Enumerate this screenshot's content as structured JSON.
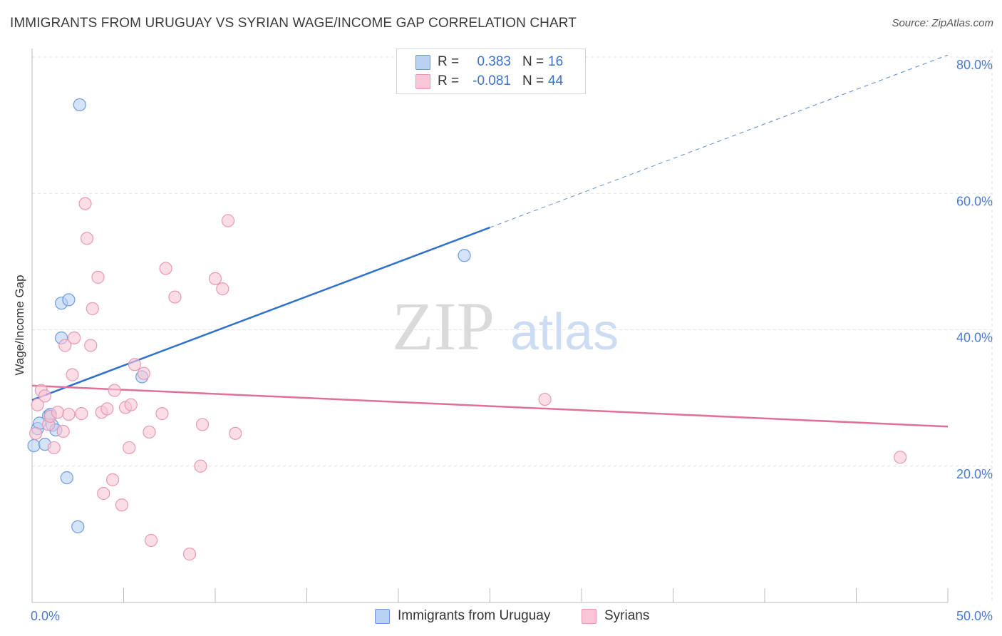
{
  "title": "IMMIGRANTS FROM URUGUAY VS SYRIAN WAGE/INCOME GAP CORRELATION CHART",
  "source": "Source: ZipAtlas.com",
  "watermark": {
    "zip": "ZIP",
    "atlas": "atlas"
  },
  "legend": {
    "rows": [
      {
        "r_label": "R =",
        "r_value": "0.383",
        "n_label": "N =",
        "n_value": "16"
      },
      {
        "r_label": "R =",
        "r_value": "-0.081",
        "n_label": "N =",
        "n_value": "44"
      }
    ]
  },
  "bottom_legend": {
    "series_a": "Immigrants from Uruguay",
    "series_b": "Syrians"
  },
  "colors": {
    "blue_fill": "#b9d1f3",
    "blue_stroke": "#6e9be0",
    "blue_line": "#2e6fcf",
    "pink_fill": "#f8c6d6",
    "pink_stroke": "#e898b4",
    "pink_line": "#e0709a",
    "grid": "#e2e2e2",
    "tick_text": "#4a7bd0"
  },
  "chart_data": {
    "type": "scatter",
    "title": "IMMIGRANTS FROM URUGUAY VS SYRIAN WAGE/INCOME GAP CORRELATION CHART",
    "xlabel": "",
    "ylabel": "Wage/Income Gap",
    "xlim": [
      0,
      50
    ],
    "ylim": [
      0,
      80
    ],
    "x_tick_labels": [
      {
        "value": 0,
        "label": "0.0%"
      },
      {
        "value": 50,
        "label": "50.0%"
      }
    ],
    "x_minor_ticks": [
      5,
      10,
      15,
      20,
      25,
      30,
      35,
      40,
      45
    ],
    "y_ticks": [
      {
        "value": 20,
        "label": "20.0%"
      },
      {
        "value": 40,
        "label": "40.0%"
      },
      {
        "value": 60,
        "label": "60.0%"
      },
      {
        "value": 80,
        "label": "80.0%"
      }
    ],
    "series": [
      {
        "name": "Immigrants from Uruguay",
        "color": "blue",
        "points": [
          [
            0.1,
            23.0
          ],
          [
            0.3,
            25.5
          ],
          [
            0.4,
            26.3
          ],
          [
            0.7,
            23.2
          ],
          [
            0.9,
            27.4
          ],
          [
            1.0,
            27.6
          ],
          [
            1.1,
            26.0
          ],
          [
            1.3,
            25.3
          ],
          [
            1.6,
            38.8
          ],
          [
            1.6,
            43.9
          ],
          [
            1.9,
            18.3
          ],
          [
            2.0,
            44.4
          ],
          [
            2.5,
            11.1
          ],
          [
            2.6,
            73.0
          ],
          [
            6.0,
            33.1
          ],
          [
            23.6,
            50.9
          ]
        ],
        "trend": {
          "x": [
            0,
            25
          ],
          "y": [
            29.7,
            55.0
          ],
          "dashed_to": [
            50,
            80.3
          ]
        }
      },
      {
        "name": "Syrians",
        "color": "pink",
        "points": [
          [
            0.2,
            24.8
          ],
          [
            0.3,
            29.0
          ],
          [
            0.5,
            31.1
          ],
          [
            0.7,
            30.3
          ],
          [
            0.9,
            26.1
          ],
          [
            1.0,
            27.3
          ],
          [
            1.2,
            22.7
          ],
          [
            1.4,
            27.9
          ],
          [
            1.7,
            25.1
          ],
          [
            1.8,
            37.7
          ],
          [
            2.0,
            27.6
          ],
          [
            2.2,
            33.4
          ],
          [
            2.3,
            38.8
          ],
          [
            2.7,
            27.7
          ],
          [
            2.9,
            58.5
          ],
          [
            3.0,
            53.4
          ],
          [
            3.2,
            37.7
          ],
          [
            3.3,
            43.1
          ],
          [
            3.6,
            47.7
          ],
          [
            3.8,
            27.9
          ],
          [
            3.9,
            16.0
          ],
          [
            4.1,
            28.4
          ],
          [
            4.4,
            18.0
          ],
          [
            4.5,
            31.1
          ],
          [
            4.9,
            14.3
          ],
          [
            5.1,
            28.6
          ],
          [
            5.3,
            22.7
          ],
          [
            5.4,
            29.0
          ],
          [
            5.6,
            34.9
          ],
          [
            6.1,
            33.6
          ],
          [
            6.4,
            25.0
          ],
          [
            6.5,
            9.1
          ],
          [
            7.1,
            27.7
          ],
          [
            7.3,
            49.0
          ],
          [
            7.8,
            44.8
          ],
          [
            8.6,
            7.1
          ],
          [
            9.2,
            20.0
          ],
          [
            9.3,
            26.1
          ],
          [
            10.0,
            47.5
          ],
          [
            10.4,
            46.0
          ],
          [
            10.7,
            56.0
          ],
          [
            11.1,
            24.8
          ],
          [
            28.0,
            29.8
          ],
          [
            47.4,
            21.3
          ]
        ],
        "trend": {
          "x": [
            0,
            50
          ],
          "y": [
            31.8,
            25.8
          ]
        }
      }
    ]
  }
}
